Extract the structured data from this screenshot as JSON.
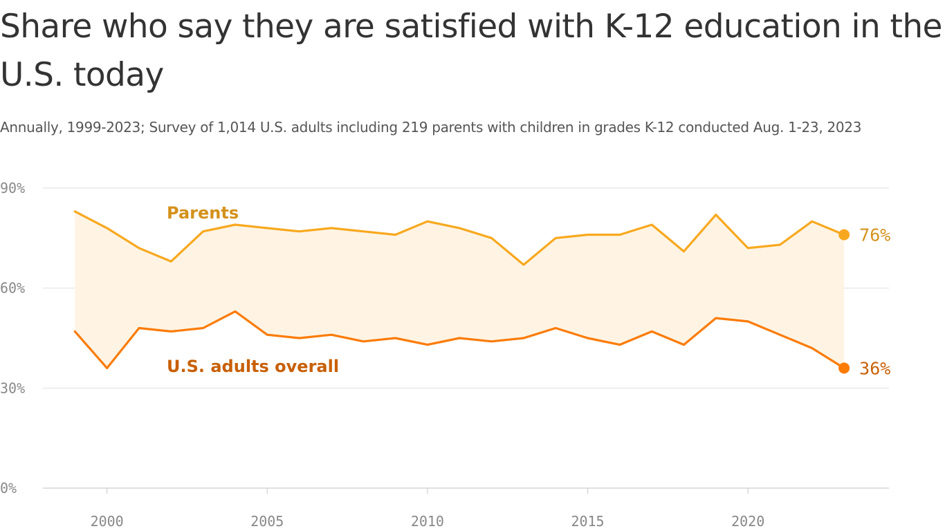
{
  "chart_data": {
    "type": "line",
    "title": "Share who say they are satisfied with K-12 education in the U.S. today",
    "subtitle": "Annually, 1999-2023; Survey of 1,014 U.S. adults including 219 parents with children in grades K-12 conducted Aug. 1-23, 2023",
    "x": [
      1999,
      2000,
      2001,
      2002,
      2003,
      2004,
      2005,
      2006,
      2007,
      2008,
      2009,
      2010,
      2011,
      2012,
      2013,
      2014,
      2015,
      2016,
      2017,
      2018,
      2019,
      2020,
      2021,
      2022,
      2023
    ],
    "x_ticks": [
      2000,
      2005,
      2010,
      2015,
      2020
    ],
    "x_tick_labels": [
      "2000",
      "2005",
      "2010",
      "2015",
      "2020"
    ],
    "xlim": [
      1998,
      2024.4
    ],
    "ylim": [
      0,
      90
    ],
    "y_ticks": [
      0,
      30,
      60,
      90
    ],
    "y_tick_labels": [
      "0%",
      "30%",
      "60%",
      "90%"
    ],
    "grid": true,
    "shaded_area_between_series": true,
    "series": [
      {
        "name": "Parents",
        "color": "#f8a81e",
        "label_color": "#d4911a",
        "values": [
          83,
          78,
          72,
          68,
          77,
          79,
          78,
          77,
          78,
          77,
          76,
          80,
          78,
          75,
          67,
          75,
          76,
          76,
          79,
          71,
          82,
          72,
          73,
          80,
          76
        ],
        "end_label": "76%"
      },
      {
        "name": "U.S. adults overall",
        "color": "#fb7b07",
        "label_color": "#c85f05",
        "values": [
          47,
          36,
          48,
          47,
          48,
          53,
          46,
          45,
          46,
          44,
          45,
          43,
          45,
          44,
          45,
          48,
          45,
          43,
          47,
          43,
          51,
          50,
          46,
          42,
          36
        ],
        "end_label": "36%"
      }
    ],
    "area_color": "#fff4e4"
  }
}
